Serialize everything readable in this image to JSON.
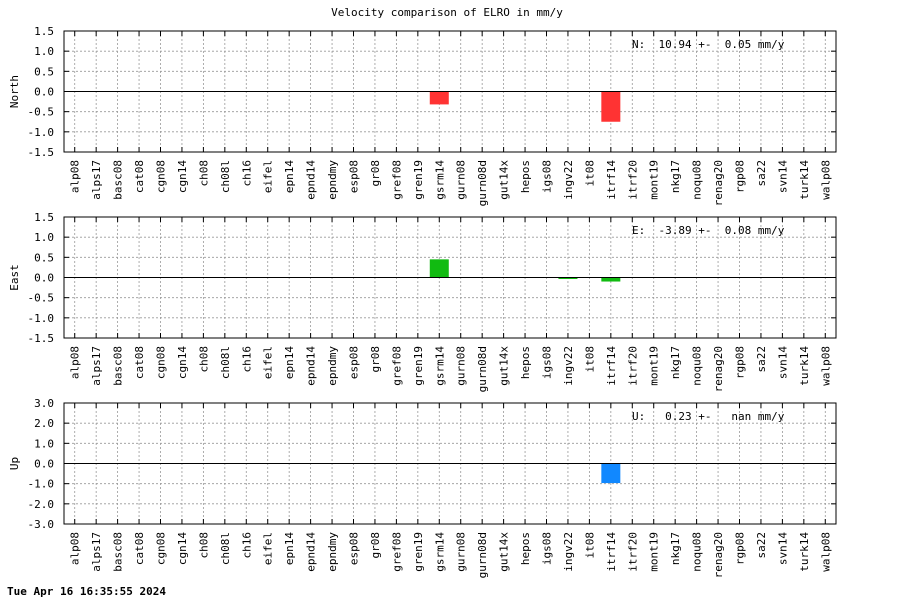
{
  "title": "Velocity comparison of ELRO in mm/y",
  "timestamp": "Tue Apr 16 16:35:55 2024",
  "categories": [
    "alp08",
    "alps17",
    "basc08",
    "cat08",
    "cgn08",
    "cgn14",
    "ch08",
    "ch08l",
    "ch16",
    "eifel",
    "epn14",
    "epnd14",
    "epndmy",
    "esp08",
    "gr08",
    "gref08",
    "gren19",
    "gsrm14",
    "gurn08",
    "gurn08d",
    "gut14x",
    "hepos",
    "igs08",
    "ingv22",
    "it08",
    "itrf14",
    "itrf20",
    "mont19",
    "nkg17",
    "noqu08",
    "renag20",
    "rgp08",
    "sa22",
    "svn14",
    "turk14",
    "walp08"
  ],
  "chart_data": [
    {
      "type": "bar",
      "ylabel": "North",
      "ylim": [
        -1.5,
        1.5
      ],
      "yticks": [
        "-1.5",
        "-1.0",
        "-0.5",
        "0.0",
        "0.5",
        "1.0",
        "1.5"
      ],
      "grid": true,
      "color": "#ff3333",
      "annotation": "N:  10.94 +-  0.05 mm/y",
      "bars": [
        {
          "category": "gsrm14",
          "value": -0.32
        },
        {
          "category": "itrf14",
          "value": -0.75
        }
      ]
    },
    {
      "type": "bar",
      "ylabel": "East",
      "ylim": [
        -1.5,
        1.5
      ],
      "yticks": [
        "-1.5",
        "-1.0",
        "-0.5",
        "0.0",
        "0.5",
        "1.0",
        "1.5"
      ],
      "grid": true,
      "color": "#11bb11",
      "annotation": "E:  -3.89 +-  0.08 mm/y",
      "bars": [
        {
          "category": "gsrm14",
          "value": 0.45
        },
        {
          "category": "ingv22",
          "value": -0.03
        },
        {
          "category": "itrf14",
          "value": -0.1
        }
      ]
    },
    {
      "type": "bar",
      "ylabel": "Up",
      "ylim": [
        -3.0,
        3.0
      ],
      "yticks": [
        "-3.0",
        "-2.0",
        "-1.0",
        "0.0",
        "1.0",
        "2.0",
        "3.0"
      ],
      "grid": true,
      "color": "#1188ff",
      "annotation": "U:   0.23 +-   nan mm/y",
      "bars": [
        {
          "category": "itrf14",
          "value": -0.97
        }
      ]
    }
  ]
}
